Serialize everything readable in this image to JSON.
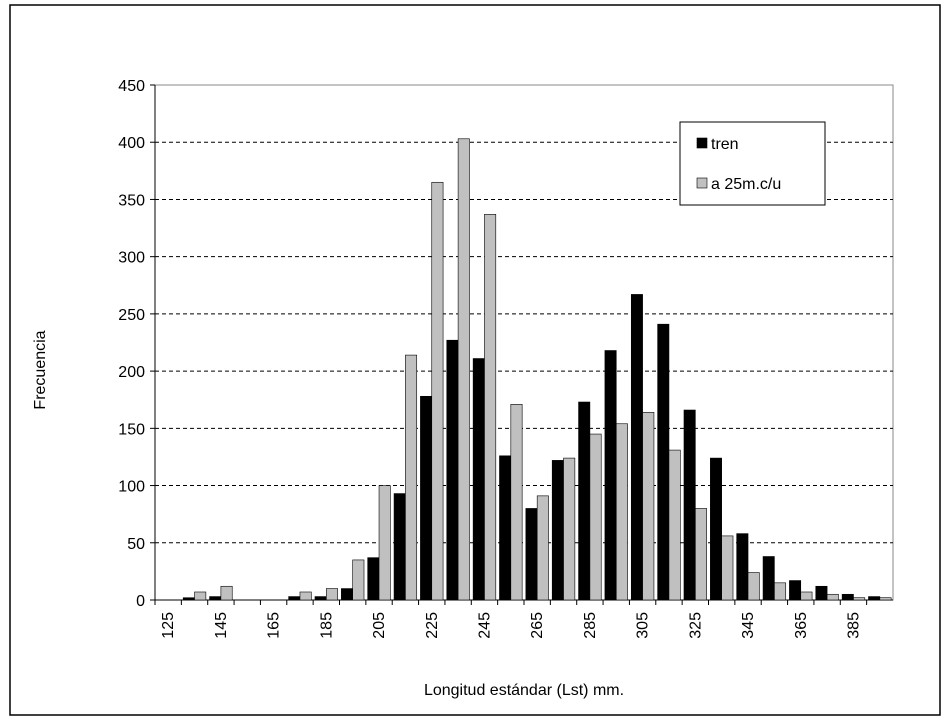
{
  "chart_data": {
    "type": "bar",
    "x_label": "Longitud estándar (Lst) mm.",
    "y_label": "Frecuencia",
    "categories": [
      "125",
      null,
      "145",
      null,
      "165",
      null,
      "185",
      null,
      "205",
      null,
      "225",
      null,
      "245",
      null,
      "265",
      null,
      "285",
      null,
      "305",
      null,
      "325",
      null,
      "345",
      null,
      "365",
      null,
      "385",
      null
    ],
    "series": [
      {
        "name": "tren",
        "color": "#000000",
        "values": [
          0,
          2,
          3,
          0,
          0,
          3,
          3,
          10,
          37,
          93,
          178,
          227,
          211,
          126,
          80,
          122,
          173,
          218,
          267,
          241,
          166,
          124,
          58,
          38,
          17,
          12,
          5,
          3
        ]
      },
      {
        "name": "a 25m.c/u",
        "color": "#c0c0c0",
        "values": [
          0,
          7,
          12,
          0,
          0,
          7,
          10,
          35,
          100,
          214,
          365,
          403,
          337,
          171,
          91,
          124,
          145,
          154,
          164,
          131,
          80,
          56,
          24,
          15,
          7,
          5,
          2,
          2
        ]
      }
    ],
    "ylim": [
      0,
      450
    ],
    "yticks": [
      0,
      50,
      100,
      150,
      200,
      250,
      300,
      350,
      400,
      450
    ],
    "grid": true,
    "legend": "upper right"
  }
}
